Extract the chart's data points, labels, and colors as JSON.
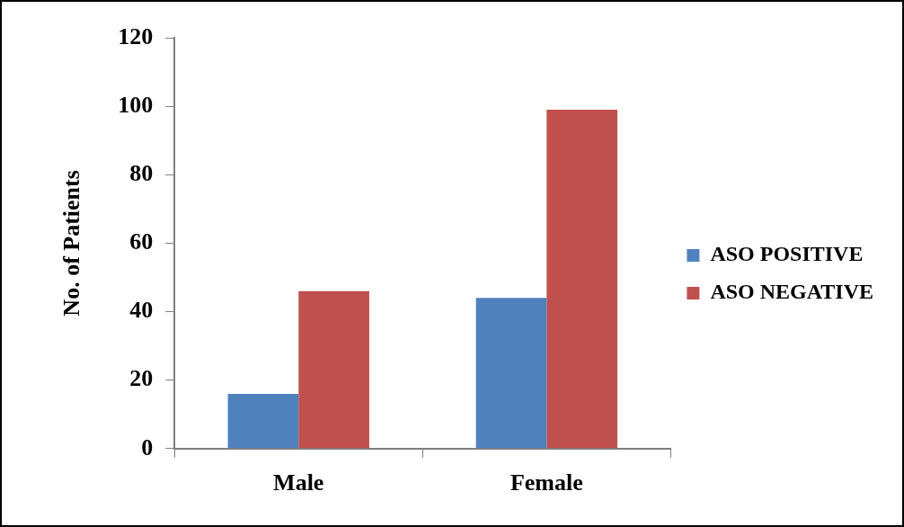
{
  "chart_data": {
    "type": "bar",
    "ylabel": "No. of Patients",
    "categories": [
      "Male",
      "Female"
    ],
    "series": [
      {
        "name": "ASO POSITIVE",
        "color": "#4f81bd",
        "values": [
          16,
          44
        ]
      },
      {
        "name": "ASO NEGATIVE",
        "color": "#c0504d",
        "values": [
          46,
          99
        ]
      }
    ],
    "ylim": [
      0,
      120
    ],
    "yticks": [
      0,
      20,
      40,
      60,
      80,
      100,
      120
    ],
    "legend": "right"
  }
}
